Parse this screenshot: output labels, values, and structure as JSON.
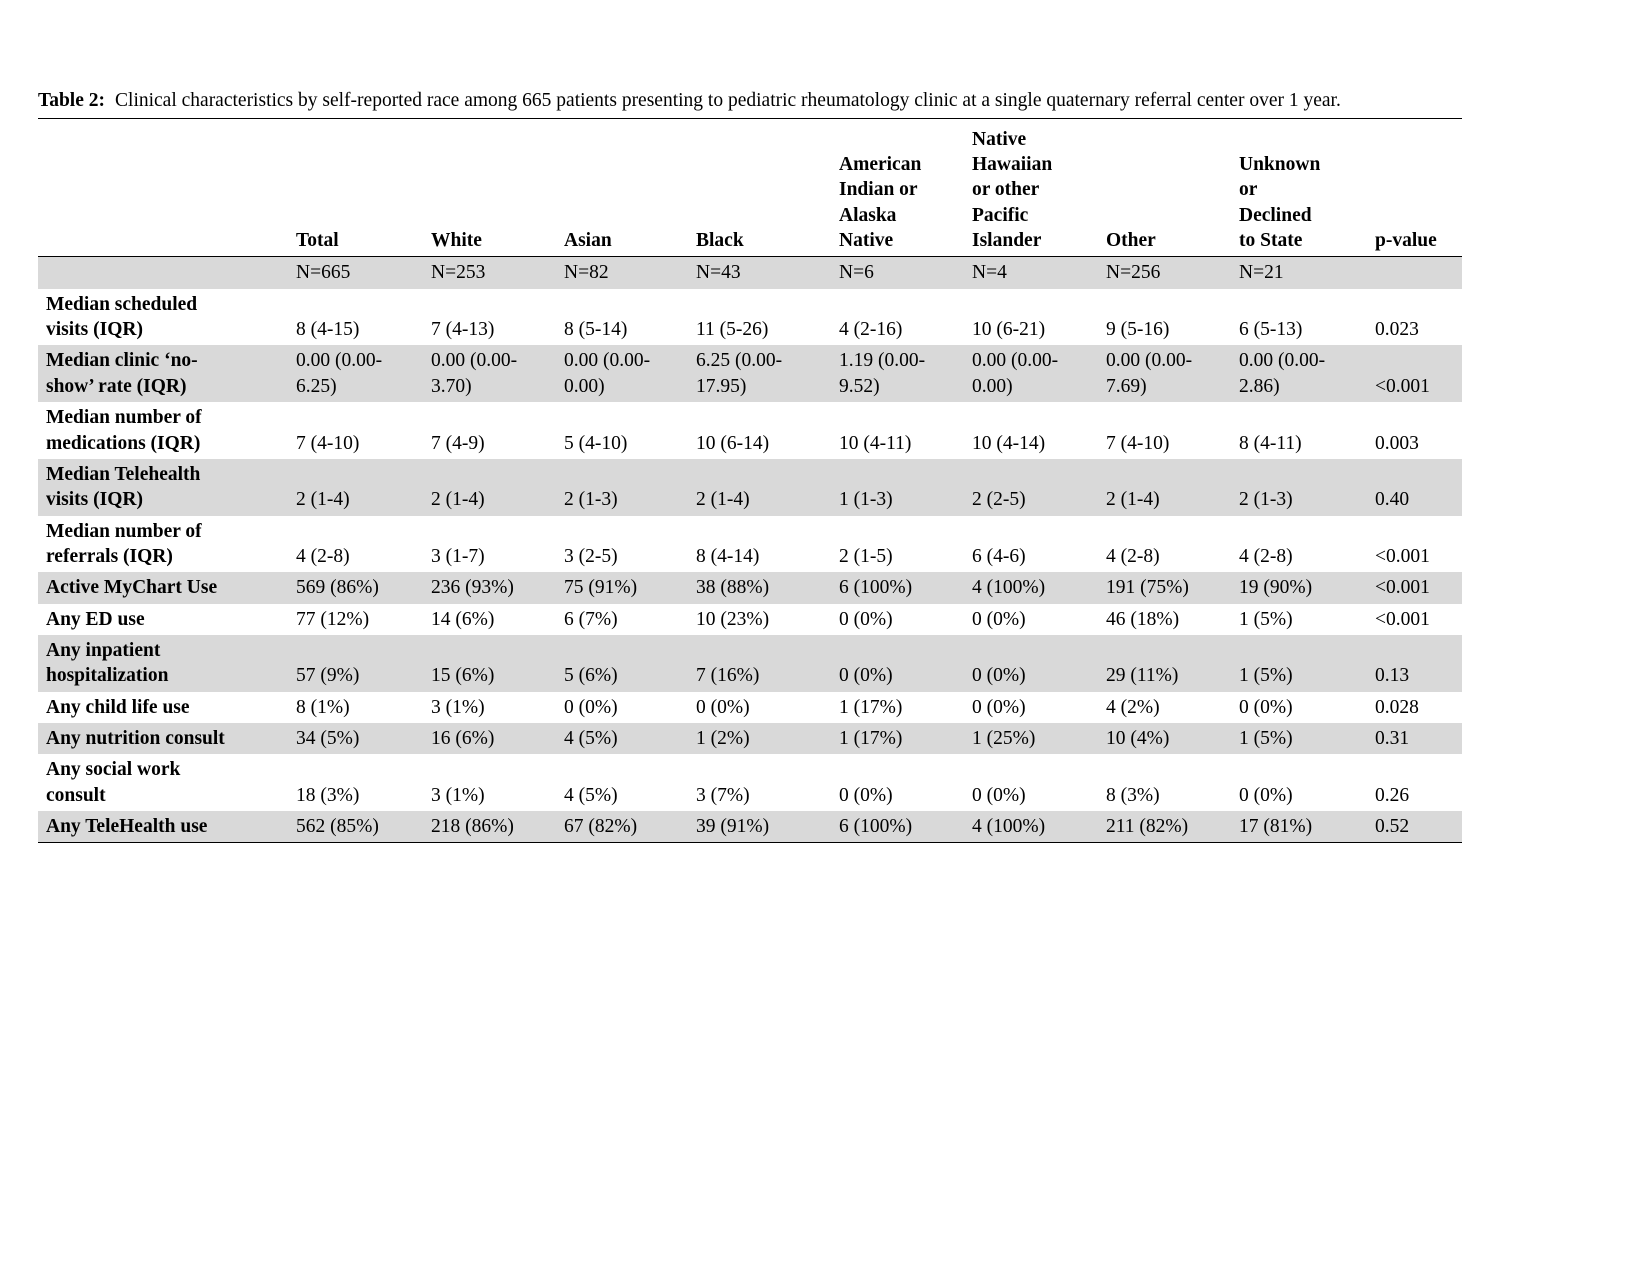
{
  "colors": {
    "row_shade": "#d9d9d9",
    "rule": "#000000",
    "background": "#ffffff"
  },
  "caption": {
    "label": "Table 2:",
    "text": "Clinical characteristics by self-reported race among 665 patients presenting to pediatric rheumatology clinic at a single quaternary referral center over 1 year."
  },
  "chart_data": {
    "type": "table",
    "title": "Clinical characteristics by self-reported race among 665 patients presenting to pediatric rheumatology clinic at a single quaternary referral center over 1 year."
  },
  "table": {
    "columns": [
      "",
      "Total",
      "White",
      "Asian",
      "Black",
      "American\nIndian or\nAlaska\nNative",
      "Native\nHawaiian\nor other\nPacific\nIslander",
      "Other",
      "Unknown\nor\nDeclined\nto State",
      "p-value"
    ],
    "n_row": [
      "",
      "N=665",
      "N=253",
      "N=82",
      "N=43",
      "N=6",
      "N=4",
      "N=256",
      "N=21",
      ""
    ],
    "rows": [
      {
        "label": "Median scheduled\nvisits (IQR)",
        "values": [
          "8 (4-15)",
          "7 (4-13)",
          "8 (5-14)",
          "11 (5-26)",
          "4 (2-16)",
          "10 (6-21)",
          "9 (5-16)",
          "6 (5-13)"
        ],
        "p": "0.023"
      },
      {
        "label": "Median clinic ‘no-\nshow’ rate (IQR)",
        "values": [
          "0.00 (0.00-6.25)",
          "0.00 (0.00-3.70)",
          "0.00 (0.00-0.00)",
          "6.25 (0.00-17.95)",
          "1.19 (0.00-9.52)",
          "0.00 (0.00-0.00)",
          "0.00 (0.00-7.69)",
          "0.00 (0.00-2.86)"
        ],
        "p": "<0.001"
      },
      {
        "label": "Median number of\nmedications (IQR)",
        "values": [
          "7 (4-10)",
          "7 (4-9)",
          "5 (4-10)",
          "10 (6-14)",
          "10 (4-11)",
          "10 (4-14)",
          "7 (4-10)",
          "8 (4-11)"
        ],
        "p": "0.003"
      },
      {
        "label": "Median Telehealth\nvisits (IQR)",
        "values": [
          "2 (1-4)",
          "2 (1-4)",
          "2 (1-3)",
          "2 (1-4)",
          "1 (1-3)",
          "2 (2-5)",
          "2 (1-4)",
          "2 (1-3)"
        ],
        "p": "0.40"
      },
      {
        "label": "Median number of\nreferrals (IQR)",
        "values": [
          "4 (2-8)",
          "3 (1-7)",
          "3 (2-5)",
          "8 (4-14)",
          "2 (1-5)",
          "6 (4-6)",
          "4 (2-8)",
          "4 (2-8)"
        ],
        "p": "<0.001"
      },
      {
        "label": "Active MyChart Use",
        "values": [
          "569 (86%)",
          "236 (93%)",
          "75 (91%)",
          "38 (88%)",
          "6 (100%)",
          "4 (100%)",
          "191 (75%)",
          "19 (90%)"
        ],
        "p": "<0.001"
      },
      {
        "label": "Any ED use",
        "values": [
          "77 (12%)",
          "14 (6%)",
          "6 (7%)",
          "10 (23%)",
          "0 (0%)",
          "0 (0%)",
          "46 (18%)",
          "1 (5%)"
        ],
        "p": "<0.001"
      },
      {
        "label": "Any inpatient\nhospitalization",
        "values": [
          "57 (9%)",
          "15 (6%)",
          "5 (6%)",
          "7 (16%)",
          "0 (0%)",
          "0 (0%)",
          "29 (11%)",
          "1 (5%)"
        ],
        "p": "0.13"
      },
      {
        "label": "Any child life use",
        "values": [
          "8 (1%)",
          "3 (1%)",
          "0 (0%)",
          "0 (0%)",
          "1 (17%)",
          "0 (0%)",
          "4 (2%)",
          "0 (0%)"
        ],
        "p": "0.028"
      },
      {
        "label": "Any nutrition consult",
        "values": [
          "34 (5%)",
          "16 (6%)",
          "4 (5%)",
          "1 (2%)",
          "1 (17%)",
          "1 (25%)",
          "10 (4%)",
          "1 (5%)"
        ],
        "p": "0.31"
      },
      {
        "label": "Any social work\nconsult",
        "values": [
          "18 (3%)",
          "3 (1%)",
          "4 (5%)",
          "3 (7%)",
          "0 (0%)",
          "0 (0%)",
          "8 (3%)",
          "0 (0%)"
        ],
        "p": "0.26"
      },
      {
        "label": "Any TeleHealth use",
        "values": [
          "562 (85%)",
          "218 (86%)",
          "67 (82%)",
          "39 (91%)",
          "6 (100%)",
          "4 (100%)",
          "211 (82%)",
          "17 (81%)"
        ],
        "p": "0.52"
      }
    ]
  }
}
